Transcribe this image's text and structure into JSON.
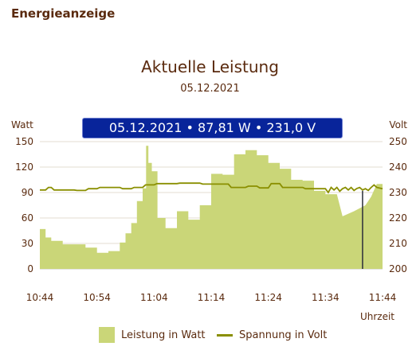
{
  "page": {
    "heading": "Energieanzeige"
  },
  "chart_data": {
    "type": "area",
    "title": "Aktuelle Leistung",
    "subtitle": "05.12.2021",
    "tooltip": "05.12.2021 • 87,81 W • 231,0 V",
    "cursor_x": 11.3,
    "xlabel": "Uhrzeit",
    "x_ticks": [
      "10:44",
      "10:54",
      "11:04",
      "11:14",
      "11:24",
      "11:34",
      "11:44"
    ],
    "x_range": [
      0,
      60
    ],
    "y_left": {
      "label": "Watt",
      "range": [
        0,
        150
      ],
      "ticks": [
        0,
        30,
        60,
        90,
        120,
        150
      ]
    },
    "y_right": {
      "label": "Volt",
      "range": [
        200,
        250
      ],
      "ticks": [
        200,
        210,
        220,
        230,
        240,
        250
      ]
    },
    "grid": true,
    "legend_position": "bottom",
    "series": [
      {
        "name": "Leistung in Watt",
        "axis": "left",
        "color": "#cad678",
        "points": [
          [
            0,
            47
          ],
          [
            1,
            47
          ],
          [
            1,
            37
          ],
          [
            2,
            37
          ],
          [
            2,
            33
          ],
          [
            4,
            33
          ],
          [
            4,
            29
          ],
          [
            8,
            29
          ],
          [
            8,
            25
          ],
          [
            10,
            25
          ],
          [
            10,
            19
          ],
          [
            12,
            19
          ],
          [
            12,
            21
          ],
          [
            14,
            21
          ],
          [
            14,
            31
          ],
          [
            15,
            31
          ],
          [
            15,
            42
          ],
          [
            16,
            42
          ],
          [
            16,
            54
          ],
          [
            17,
            54
          ],
          [
            17,
            80
          ],
          [
            18,
            80
          ],
          [
            18,
            95
          ],
          [
            18.6,
            95
          ],
          [
            18.6,
            145
          ],
          [
            19,
            145
          ],
          [
            19,
            125
          ],
          [
            19.6,
            125
          ],
          [
            19.6,
            115
          ],
          [
            20.6,
            115
          ],
          [
            20.6,
            60
          ],
          [
            22,
            60
          ],
          [
            22,
            48
          ],
          [
            24,
            48
          ],
          [
            24,
            68
          ],
          [
            26,
            68
          ],
          [
            26,
            58
          ],
          [
            28,
            58
          ],
          [
            28,
            75
          ],
          [
            30,
            75
          ],
          [
            30,
            112
          ],
          [
            32,
            112
          ],
          [
            32,
            111
          ],
          [
            34,
            111
          ],
          [
            34,
            135
          ],
          [
            36,
            135
          ],
          [
            36,
            140
          ],
          [
            38,
            140
          ],
          [
            38,
            134
          ],
          [
            40,
            134
          ],
          [
            40,
            125
          ],
          [
            42,
            125
          ],
          [
            42,
            118
          ],
          [
            44,
            118
          ],
          [
            44,
            105
          ],
          [
            46,
            105
          ],
          [
            46,
            104
          ],
          [
            48,
            104
          ],
          [
            48,
            92
          ],
          [
            50,
            92
          ],
          [
            50,
            88
          ],
          [
            52,
            88
          ],
          [
            53,
            62
          ],
          [
            55,
            68
          ],
          [
            57,
            75
          ],
          [
            58,
            85
          ],
          [
            59,
            100
          ],
          [
            60,
            100
          ]
        ]
      },
      {
        "name": "Spannung in Volt",
        "axis": "right",
        "color": "#8a8f00",
        "points": [
          [
            0,
            231
          ],
          [
            1,
            231
          ],
          [
            1.5,
            232
          ],
          [
            2,
            232
          ],
          [
            2.5,
            231
          ],
          [
            6,
            231
          ],
          [
            6.5,
            230.8
          ],
          [
            8,
            230.8
          ],
          [
            8.5,
            231.5
          ],
          [
            10,
            231.5
          ],
          [
            10.5,
            232
          ],
          [
            14,
            232
          ],
          [
            14.5,
            231.5
          ],
          [
            16,
            231.5
          ],
          [
            16.5,
            232
          ],
          [
            18,
            232
          ],
          [
            18.5,
            233
          ],
          [
            20,
            233
          ],
          [
            20.5,
            233.5
          ],
          [
            24,
            233.5
          ],
          [
            24.5,
            233.7
          ],
          [
            28,
            233.7
          ],
          [
            28.5,
            233.3
          ],
          [
            33,
            233.3
          ],
          [
            33.5,
            232
          ],
          [
            36,
            232
          ],
          [
            36.5,
            232.5
          ],
          [
            38,
            232.5
          ],
          [
            38.5,
            231.8
          ],
          [
            40,
            231.8
          ],
          [
            40.5,
            233.5
          ],
          [
            42,
            233.5
          ],
          [
            42.5,
            232
          ],
          [
            46,
            232
          ],
          [
            46.5,
            231.5
          ],
          [
            50,
            231.5
          ],
          [
            50.5,
            230
          ],
          [
            51,
            232
          ],
          [
            51.5,
            231
          ],
          [
            52,
            232
          ],
          [
            52.5,
            230.5
          ],
          [
            53,
            231.5
          ],
          [
            53.5,
            232
          ],
          [
            54,
            231
          ],
          [
            54.5,
            232
          ],
          [
            55,
            230.8
          ],
          [
            55.5,
            231.6
          ],
          [
            56,
            232
          ],
          [
            56.5,
            231
          ],
          [
            57,
            231.5
          ],
          [
            57.5,
            230.8
          ],
          [
            58,
            232
          ],
          [
            58.5,
            233
          ],
          [
            59,
            232
          ],
          [
            60,
            231.5
          ]
        ]
      }
    ]
  },
  "legend": {
    "power_label": "Leistung in Watt",
    "voltage_label": "Spannung in Volt"
  }
}
